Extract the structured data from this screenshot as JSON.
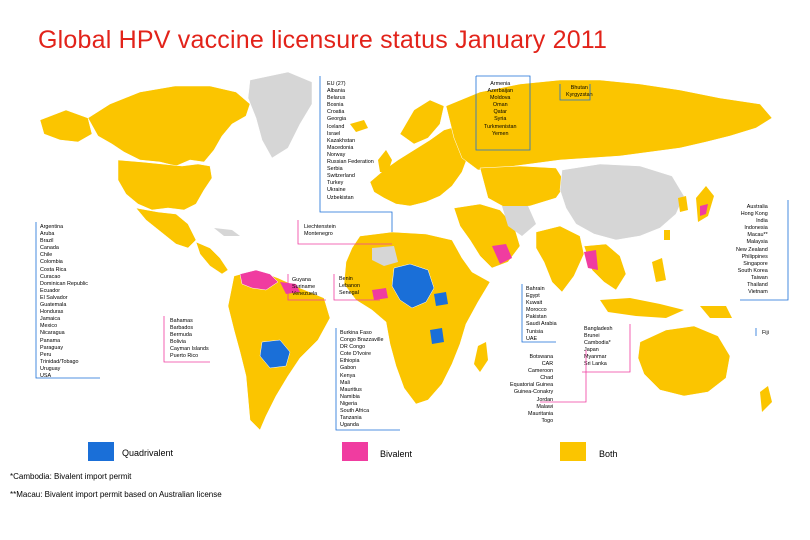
{
  "title": "Global HPV vaccine licensure status January 2011",
  "colors": {
    "quadrivalent": "#1a6fd8",
    "bivalent": "#f03ca0",
    "both": "#fbc500",
    "none": "#d6d6d6",
    "ocean": "#ffffff"
  },
  "labels": {
    "europe": [
      "EU (27)",
      "Albania",
      "Belarus",
      "Bosnia",
      "Croatia",
      "Georgia",
      "Iceland",
      "Israel",
      "Kazakhstan",
      "Macedonia",
      "Norway",
      "Russian Federation",
      "Serbia",
      "Switzerland",
      "Turkey",
      "Ukraine",
      "Uzbekistan"
    ],
    "central_asia": [
      "Armenia",
      "Azerbaijan",
      "Moldova",
      "Oman",
      "Qatar",
      "Syria",
      "Turkmenistan",
      "Yemen"
    ],
    "bhutan": [
      "Bhutan",
      "Kyrgyzstan"
    ],
    "asia_pacific": [
      "Australia",
      "Hong Kong",
      "India",
      "Indonesia",
      "Macau**",
      "Malaysia",
      "New Zealand",
      "Philippines",
      "Singapore",
      "South Korea",
      "Taiwan",
      "Thailand",
      "Vietnam"
    ],
    "liechtenstein": [
      "Liechtenstein",
      "Montenegro"
    ],
    "americas": [
      "Argentina",
      "Aruba",
      "Brazil",
      "Canada",
      "Chile",
      "Colombia",
      "Costa Rica",
      "Curacao",
      "Dominican Republic",
      "Ecuador",
      "El Salvador",
      "Guatemala",
      "Honduras",
      "Jamaica",
      "Mexico",
      "Nicaragua",
      "Panama",
      "Paraguay",
      "Peru",
      "Trinidad/Tobago",
      "Uruguay",
      "USA"
    ],
    "guyana": [
      "Guyana",
      "Suriname",
      "Venezuela"
    ],
    "benin": [
      "Benin",
      "Lebanon",
      "Senegal"
    ],
    "bahamas": [
      "Bahamas",
      "Barbados",
      "Bermuda",
      "Bolivia",
      "Cayman Islands",
      "Puerto Rico"
    ],
    "africa": [
      "Burkina Faso",
      "Congo Brazzaville",
      "DR Congo",
      "Cote D'Ivoire",
      "Ethiopia",
      "Gabon",
      "Kenya",
      "Mali",
      "Mauritius",
      "Namibia",
      "Nigeria",
      "South Africa",
      "Tanzania",
      "Uganda"
    ],
    "bahrain": [
      "Bahrain",
      "Egypt",
      "Kuwait",
      "Morocco",
      "Pakistan",
      "Saudi Arabia",
      "Tunisia",
      "UAE"
    ],
    "botswana": [
      "Botswana",
      "CAR",
      "Cameroon",
      "Chad",
      "Equatorial Guinea",
      "Guinea-Conakry",
      "Jordan",
      "Malawi",
      "Mauritania",
      "Togo"
    ],
    "bangladesh": [
      "Bangladesh",
      "Brunei",
      "Cambodia*",
      "Japan",
      "Myanmar",
      "Sri Lanka"
    ],
    "fiji": [
      "Fiji"
    ]
  },
  "legend": {
    "quadrivalent": "Quadrivalent",
    "bivalent": "Bivalent",
    "both": "Both"
  },
  "footnotes": {
    "cambodia": "*Cambodia: Bivalent import permit",
    "macau": "**Macau: Bivalent import permit based on Australian license"
  }
}
